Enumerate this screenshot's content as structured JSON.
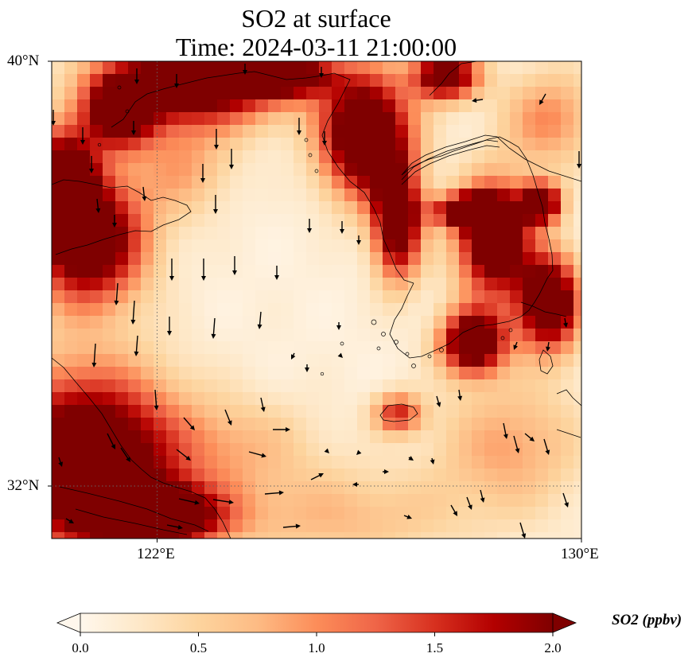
{
  "title": {
    "line1": "SO2 at surface",
    "line2": "Time: 2024-03-11 21:00:00"
  },
  "axes": {
    "lat_ticks": [
      "40°N",
      "32°N"
    ],
    "lon_ticks": [
      "122°E",
      "130°E"
    ],
    "lat_range": [
      31,
      40
    ],
    "lon_range": [
      120,
      130
    ],
    "gridlines": "dotted",
    "coastlines": true
  },
  "colorbar": {
    "label": "SO2 (ppbv)",
    "ticks": [
      "0.0",
      "0.5",
      "1.0",
      "1.5",
      "2.0"
    ],
    "range": [
      0,
      2
    ],
    "colormap": "OrRd",
    "extend": "both",
    "orientation": "horizontal"
  },
  "field": {
    "variable": "SO2",
    "high_regions": [
      "northwest and north coast (Bohai / Liaoning)",
      "southwest (Yangtze delta)",
      "west Korean coast",
      "southern Korea",
      "eastern Korea",
      "northeast corner"
    ],
    "low_regions": [
      "Yellow Sea interior",
      "East China Sea"
    ]
  },
  "wind": {
    "display": "arrows",
    "dominant_direction": "southward over the Yellow Sea, eastward over the East China Sea"
  },
  "colors": {
    "low": "#fff7ec",
    "mid": "#fc8d59",
    "high": "#7f0000"
  }
}
